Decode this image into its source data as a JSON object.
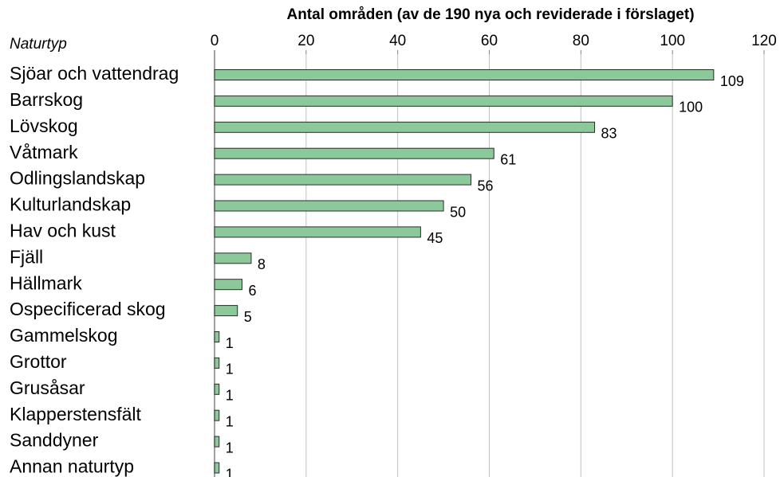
{
  "chart_data": {
    "type": "bar",
    "title": "Antal områden (av de 190 nya och reviderade i förslaget)",
    "y_label": "Naturtyp",
    "categories": [
      "Sjöar och vattendrag",
      "Barrskog",
      "Lövskog",
      "Våtmark",
      "Odlingslandskap",
      "Kulturlandskap",
      "Hav och kust",
      "Fjäll",
      "Hällmark",
      "Ospecificerad skog",
      "Gammelskog",
      "Grottor",
      "Grusåsar",
      "Klapperstensfält",
      "Sanddyner",
      "Annan naturtyp"
    ],
    "values": [
      109,
      100,
      83,
      61,
      56,
      50,
      45,
      8,
      6,
      5,
      1,
      1,
      1,
      1,
      1,
      1
    ],
    "color": "#8cc99a",
    "xlim": [
      0,
      120
    ],
    "xticks": [
      0,
      20,
      40,
      60,
      80,
      100,
      120
    ],
    "grid": true
  }
}
